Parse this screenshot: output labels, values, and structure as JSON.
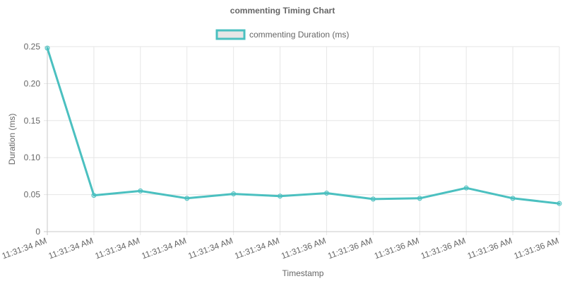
{
  "chart_data": {
    "type": "line",
    "title": "commenting Timing Chart",
    "xlabel": "Timestamp",
    "ylabel": "Duration (ms)",
    "ylim": [
      0,
      0.25
    ],
    "y_ticks": [
      "0",
      "0.05",
      "0.10",
      "0.15",
      "0.20",
      "0.25"
    ],
    "grid": true,
    "legend_position": "top",
    "categories": [
      "11:31:34 AM",
      "11:31:34 AM",
      "11:31:34 AM",
      "11:31:34 AM",
      "11:31:34 AM",
      "11:31:34 AM",
      "11:31:36 AM",
      "11:31:36 AM",
      "11:31:36 AM",
      "11:31:36 AM",
      "11:31:36 AM",
      "11:31:36 AM"
    ],
    "series": [
      {
        "name": "commenting Duration (ms)",
        "color": "#4bc0c0",
        "values": [
          0.248,
          0.049,
          0.055,
          0.045,
          0.051,
          0.048,
          0.052,
          0.044,
          0.045,
          0.059,
          0.045,
          0.038
        ]
      }
    ]
  }
}
